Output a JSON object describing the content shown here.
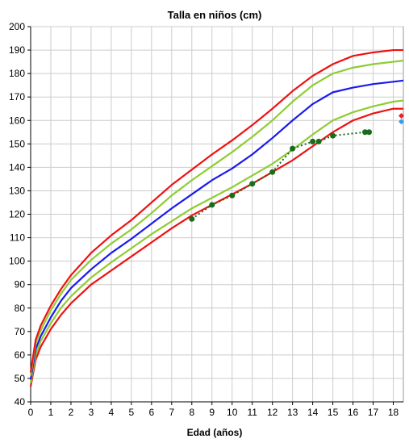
{
  "chart_data": {
    "type": "line",
    "title": "Talla en niños (cm)",
    "xlabel": "Edad (años)",
    "ylabel": "",
    "xlim": [
      0,
      18.5
    ],
    "ylim": [
      40,
      200
    ],
    "xticks": [
      "0",
      "1",
      "2",
      "3",
      "4",
      "5",
      "6",
      "7",
      "8",
      "9",
      "10",
      "11",
      "12",
      "13",
      "14",
      "15",
      "16",
      "17",
      "18"
    ],
    "yticks": [
      "40",
      "50",
      "60",
      "70",
      "80",
      "90",
      "100",
      "110",
      "120",
      "130",
      "140",
      "150",
      "160",
      "170",
      "180",
      "190",
      "200"
    ],
    "grid": true,
    "series": [
      {
        "color": "#ee1111",
        "style": "solid",
        "x": [
          0,
          0.25,
          0.5,
          1,
          1.5,
          2,
          3,
          4,
          5,
          6,
          7,
          8,
          9,
          10,
          11,
          12,
          13,
          14,
          15,
          16,
          17,
          18,
          18.5
        ],
        "y": [
          46.5,
          58,
          63.5,
          71,
          77,
          82,
          90,
          96,
          102,
          108,
          114,
          119.5,
          124,
          128.5,
          133,
          138,
          143,
          149,
          155,
          160,
          163,
          165,
          165
        ]
      },
      {
        "color": "#8fcc33",
        "style": "solid",
        "x": [
          0,
          0.25,
          0.5,
          1,
          1.5,
          2,
          3,
          4,
          5,
          6,
          7,
          8,
          9,
          10,
          11,
          12,
          13,
          14,
          15,
          16,
          17,
          18,
          18.5
        ],
        "y": [
          48,
          60,
          66,
          73.5,
          80,
          85,
          93,
          99.5,
          105.5,
          111.5,
          117,
          122.5,
          127,
          131.5,
          136.5,
          141.5,
          147.5,
          154,
          160,
          163.5,
          166,
          168,
          168.5
        ]
      },
      {
        "color": "#1a1aee",
        "style": "solid",
        "x": [
          0,
          0.25,
          0.5,
          1,
          1.5,
          2,
          3,
          4,
          5,
          6,
          7,
          8,
          9,
          10,
          11,
          12,
          13,
          14,
          15,
          16,
          17,
          18,
          18.5
        ],
        "y": [
          49.5,
          62.5,
          68,
          76,
          83,
          88.5,
          96.5,
          103.5,
          109.5,
          116,
          122.5,
          128.5,
          134.5,
          139.5,
          145.5,
          152.5,
          160,
          167,
          172,
          174,
          175.5,
          176.5,
          177
        ]
      },
      {
        "color": "#8fcc33",
        "style": "solid",
        "x": [
          0,
          0.25,
          0.5,
          1,
          1.5,
          2,
          3,
          4,
          5,
          6,
          7,
          8,
          9,
          10,
          11,
          12,
          13,
          14,
          15,
          16,
          17,
          18,
          18.5
        ],
        "y": [
          51,
          65,
          70.5,
          79,
          86,
          92,
          100.5,
          107.5,
          113.5,
          120.5,
          128,
          134.5,
          140.5,
          146.5,
          153,
          160,
          168,
          175,
          180,
          182.5,
          184,
          185,
          185.5
        ]
      },
      {
        "color": "#ee1111",
        "style": "solid",
        "x": [
          0,
          0.25,
          0.5,
          1,
          1.5,
          2,
          3,
          4,
          5,
          6,
          7,
          8,
          9,
          10,
          11,
          12,
          13,
          14,
          15,
          16,
          17,
          18,
          18.5
        ],
        "y": [
          52.5,
          66.5,
          72.5,
          81,
          88,
          94,
          103.5,
          111,
          117.5,
          125,
          132.5,
          139,
          145.5,
          151.5,
          158,
          165,
          172.5,
          179,
          184,
          187.5,
          189,
          190,
          190
        ]
      },
      {
        "color": "#1a6b1a",
        "style": "dotted",
        "markers": true,
        "x": [
          8,
          9,
          10,
          11,
          12,
          13,
          14,
          14.3,
          15,
          16.6,
          16.8
        ],
        "y": [
          118,
          124,
          128,
          133,
          138,
          148,
          151,
          151,
          153.5,
          155,
          155
        ]
      }
    ],
    "extra_points": [
      {
        "color": "#ee2222",
        "shape": "diamond",
        "x": 18.4,
        "y": 162
      },
      {
        "color": "#3399ff",
        "shape": "diamond",
        "x": 18.4,
        "y": 159.5
      }
    ]
  }
}
